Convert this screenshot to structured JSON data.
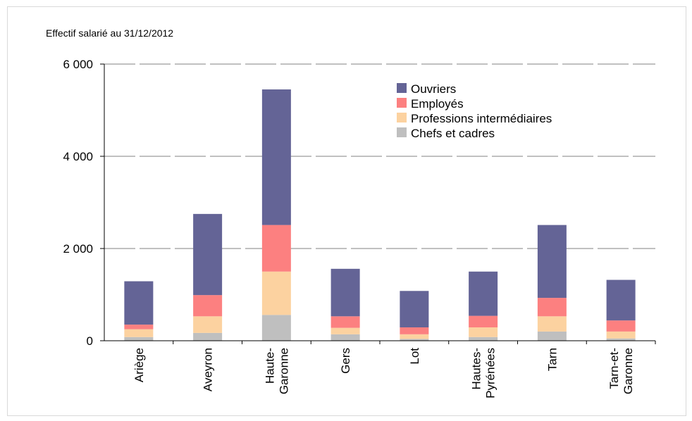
{
  "chart_data": {
    "type": "bar",
    "stacked": true,
    "title": "",
    "ylabel": "Effectif salarié au 31/12/2012",
    "xlabel": "",
    "ylim": [
      0,
      6000
    ],
    "yticks": [
      0,
      2000,
      4000,
      6000
    ],
    "ytick_labels": [
      "0",
      "2 000",
      "4 000",
      "6 000"
    ],
    "grid": "horizontal dashed",
    "legend_position": "top-right",
    "categories": [
      [
        "Ariège"
      ],
      [
        "Aveyron"
      ],
      [
        "Haute-",
        "Garonne"
      ],
      [
        "Gers"
      ],
      [
        "Lot"
      ],
      [
        "Hautes-",
        "Pyrénées"
      ],
      [
        "Tarn"
      ],
      [
        "Tarn-et-",
        "Garonne"
      ]
    ],
    "series": [
      {
        "name": "Chefs et cadres",
        "color": "#bfbfbf",
        "values": [
          80,
          170,
          560,
          140,
          40,
          80,
          200,
          50
        ]
      },
      {
        "name": "Professions intermédiaires",
        "color": "#fcd2a0",
        "values": [
          170,
          360,
          940,
          140,
          100,
          210,
          330,
          150
        ]
      },
      {
        "name": "Employés",
        "color": "#fc8080",
        "values": [
          100,
          460,
          1010,
          250,
          150,
          250,
          400,
          240
        ]
      },
      {
        "name": "Ouvriers",
        "color": "#646496",
        "values": [
          940,
          1760,
          2940,
          1030,
          790,
          960,
          1580,
          880
        ]
      }
    ],
    "legend_order": [
      "Ouvriers",
      "Employés",
      "Professions intermédiaires",
      "Chefs et cadres"
    ]
  }
}
